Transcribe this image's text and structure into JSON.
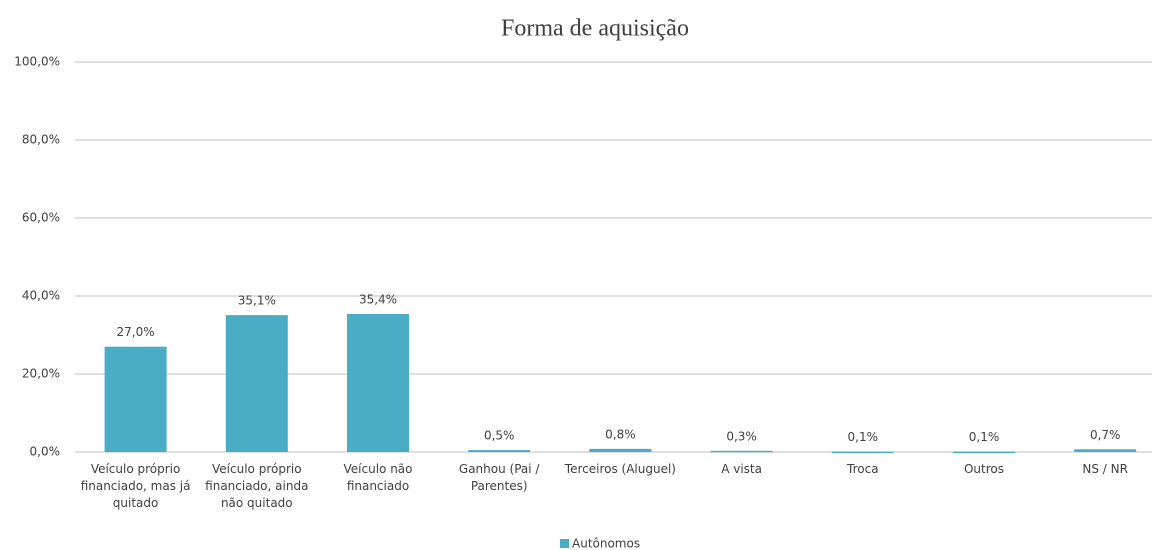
{
  "chart_data": {
    "type": "bar",
    "title": "Forma de aquisição",
    "categories": [
      "Veículo próprio financiado, mas já quitado",
      "Veículo próprio financiado, ainda não quitado",
      "Veículo não financiado",
      "Ganhou (Pai / Parentes)",
      "Terceiros (Aluguel)",
      "A vista",
      "Troca",
      "Outros",
      "NS / NR"
    ],
    "series": [
      {
        "name": "Autônomos",
        "color": "#4bacc6",
        "values": [
          27.0,
          35.1,
          35.4,
          0.5,
          0.8,
          0.3,
          0.1,
          0.1,
          0.7
        ],
        "value_labels": [
          "27,0%",
          "35,1%",
          "35,4%",
          "0,5%",
          "0,8%",
          "0,3%",
          "0,1%",
          "0,1%",
          "0,7%"
        ]
      }
    ],
    "ylim": [
      0,
      100
    ],
    "yticks": [
      {
        "value": 0,
        "label": "0,0%"
      },
      {
        "value": 20,
        "label": "20,0%"
      },
      {
        "value": 40,
        "label": "40,0%"
      },
      {
        "value": 60,
        "label": "60,0%"
      },
      {
        "value": 80,
        "label": "80,0%"
      },
      {
        "value": 100,
        "label": "100,0%"
      }
    ],
    "grid": true,
    "legend": "bottom"
  }
}
